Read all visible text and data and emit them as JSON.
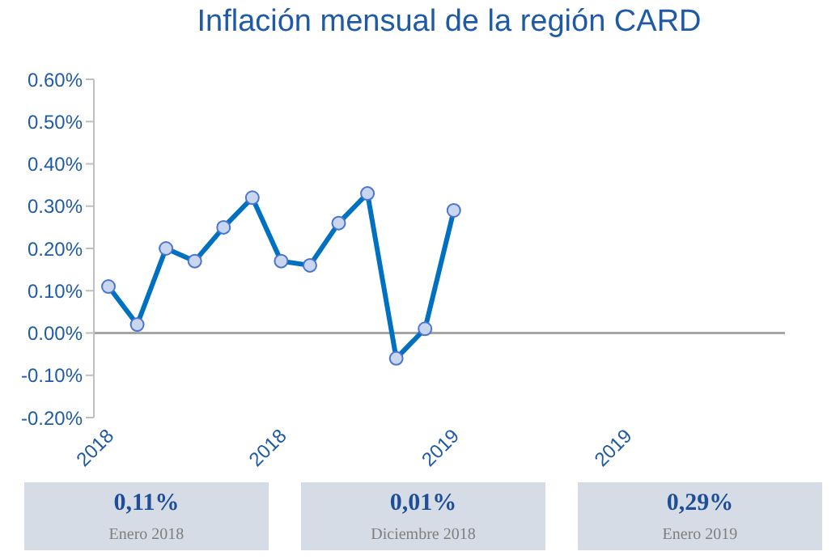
{
  "chart_data": {
    "type": "line",
    "title": "Inflación mensual de la región CARD",
    "categories": [
      "2018",
      null,
      null,
      null,
      null,
      null,
      "2018",
      null,
      null,
      null,
      null,
      null,
      "2019",
      null,
      null,
      null,
      null,
      null,
      "2019",
      null,
      null,
      null,
      null,
      null
    ],
    "series": [
      {
        "color": "#0070c0",
        "values": [
          0.11,
          0.02,
          0.2,
          0.17,
          0.25,
          0.32,
          0.17,
          0.16,
          0.26,
          0.33,
          -0.06,
          0.01,
          0.29,
          null,
          null,
          null,
          null,
          null,
          null,
          null,
          null,
          null,
          null,
          null
        ]
      }
    ],
    "ylim": [
      -0.2,
      0.6
    ],
    "yticks": [
      {
        "value": -0.2,
        "label": "-0.20%"
      },
      {
        "value": -0.1,
        "label": "-0.10%"
      },
      {
        "value": 0,
        "label": "0.00%"
      },
      {
        "value": 0.1,
        "label": "0.10%"
      },
      {
        "value": 0.2,
        "label": "0.20%"
      },
      {
        "value": 0.3,
        "label": "0.30%"
      },
      {
        "value": 0.4,
        "label": "0.40%"
      },
      {
        "value": 0.5,
        "label": "0.50%"
      },
      {
        "value": 0.6,
        "label": "0.60%"
      }
    ],
    "ref_lines": [
      {
        "axis": "y",
        "value": 0,
        "color": "#a6a6a6"
      }
    ],
    "marker": "circle",
    "line_style": "solid",
    "grid": false,
    "legend": false,
    "annotations": [
      "0,11%",
      "Enero 2018",
      "0,01%",
      "Diciembre 2018",
      "0,29%",
      "Enero 2019"
    ]
  }
}
